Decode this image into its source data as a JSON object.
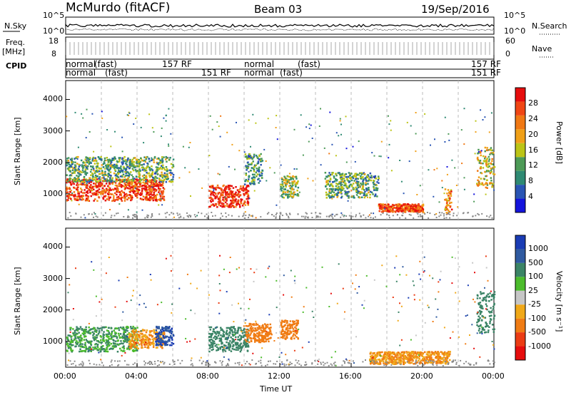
{
  "header": {
    "station": "McMurdo (fitACF)",
    "beam": "Beam 03",
    "date": "19/Sep/2016"
  },
  "side_labels": {
    "nsky": "N.Sky",
    "freq": "Freq.",
    "freq_unit": "[MHz]",
    "cpid": "CPID",
    "nsearch": "N.Search",
    "nave": "Nave"
  },
  "noise_panel": {
    "left_ticks": [
      "10^5",
      "10^0"
    ],
    "right_ticks": [
      "10^5",
      "10^0"
    ]
  },
  "freq_panel": {
    "left_ticks": [
      "18",
      "8"
    ],
    "right_ticks": [
      "60",
      "0"
    ]
  },
  "cpid_panel": {
    "row1": [
      {
        "text": "normal",
        "t": 0.0
      },
      {
        "text": "(fast)",
        "t": 1.6
      },
      {
        "text": "157 RF",
        "t": 5.4
      },
      {
        "text": "normal",
        "t": 10.0
      },
      {
        "text": "(fast)",
        "t": 13.0
      },
      {
        "text": "157 RF",
        "t": 23.0
      }
    ],
    "row2": [
      {
        "text": "normal",
        "t": 0.0
      },
      {
        "text": "(fast)",
        "t": 2.2
      },
      {
        "text": "151 RF",
        "t": 7.6
      },
      {
        "text": "normal",
        "t": 10.0
      },
      {
        "text": "(fast)",
        "t": 12.0
      },
      {
        "text": "151 RF",
        "t": 23.0
      }
    ]
  },
  "colors": {
    "power_scale": [
      "#1414dc",
      "#2a55b4",
      "#2f8a73",
      "#4d9a57",
      "#bcc416",
      "#f0a018",
      "#f07814",
      "#f04614",
      "#e60d0d"
    ],
    "velocity_scale": [
      "#1a3cb4",
      "#2f5aa0",
      "#3b8466",
      "#4cbc2c",
      "#c6c6c6",
      "#f0a818",
      "#f07c14",
      "#eb3c14",
      "#e60d0d"
    ]
  },
  "chart_data": [
    {
      "type": "heatmap",
      "panel": "power",
      "ylabel": "Slant Range [km]",
      "yticks": [
        1000,
        2000,
        3000,
        4000
      ],
      "ylim": [
        180,
        4600
      ],
      "xlim": [
        0,
        24
      ],
      "colorbar": {
        "label": "Power [dB]",
        "ticks": [
          4,
          8,
          12,
          16,
          20,
          24,
          28
        ],
        "range": [
          0,
          32
        ]
      },
      "regions": [
        {
          "t": [
            0.0,
            5.5
          ],
          "range": [
            800,
            1500
          ],
          "value": 27
        },
        {
          "t": [
            0.0,
            6.0
          ],
          "range": [
            1400,
            2200
          ],
          "value": 12
        },
        {
          "t": [
            8.0,
            10.2
          ],
          "range": [
            600,
            1300
          ],
          "value": 28
        },
        {
          "t": [
            10.0,
            11.0
          ],
          "range": [
            1300,
            2300
          ],
          "value": 10
        },
        {
          "t": [
            12.0,
            13.0
          ],
          "range": [
            900,
            1600
          ],
          "value": 14
        },
        {
          "t": [
            14.5,
            17.5
          ],
          "range": [
            900,
            1700
          ],
          "value": 12
        },
        {
          "t": [
            17.5,
            20.0
          ],
          "range": [
            450,
            700
          ],
          "value": 26
        },
        {
          "t": [
            21.2,
            21.6
          ],
          "range": [
            400,
            1200
          ],
          "value": 22
        },
        {
          "t": [
            23.0,
            24.0
          ],
          "range": [
            1200,
            2500
          ],
          "value": 18
        }
      ]
    },
    {
      "type": "heatmap",
      "panel": "velocity",
      "xlabel": "Time UT",
      "ylabel": "Slant Range [km]",
      "xticks": [
        "00:00",
        "04:00",
        "08:00",
        "12:00",
        "16:00",
        "20:00",
        "00:00"
      ],
      "yticks": [
        1000,
        2000,
        3000,
        4000
      ],
      "ylim": [
        180,
        4600
      ],
      "xlim": [
        0,
        24
      ],
      "colorbar": {
        "label": "Velocity [m s⁻¹]",
        "ticks": [
          1000,
          500,
          100,
          25,
          -25,
          -100,
          -500,
          -1000
        ]
      },
      "regions": [
        {
          "t": [
            0.0,
            4.0
          ],
          "range": [
            700,
            1500
          ],
          "value": 100
        },
        {
          "t": [
            3.5,
            5.5
          ],
          "range": [
            800,
            1400
          ],
          "value": -100
        },
        {
          "t": [
            5.0,
            6.0
          ],
          "range": [
            900,
            1500
          ],
          "value": 1000
        },
        {
          "t": [
            8.0,
            10.2
          ],
          "range": [
            700,
            1500
          ],
          "value": 200
        },
        {
          "t": [
            10.0,
            11.5
          ],
          "range": [
            1000,
            1600
          ],
          "value": -200
        },
        {
          "t": [
            12.0,
            13.0
          ],
          "range": [
            1100,
            1700
          ],
          "value": -200
        },
        {
          "t": [
            17.0,
            21.5
          ],
          "range": [
            300,
            700
          ],
          "value": -100
        },
        {
          "t": [
            23.0,
            24.0
          ],
          "range": [
            1300,
            2600
          ],
          "value": 200
        }
      ]
    }
  ]
}
